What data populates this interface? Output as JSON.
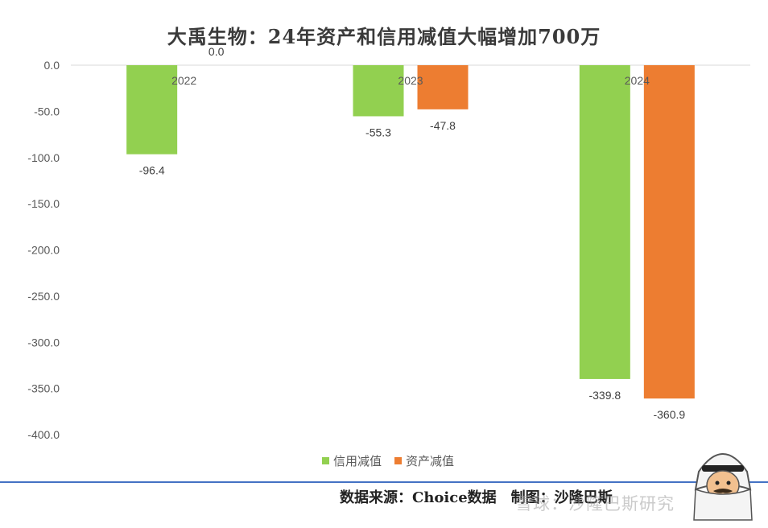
{
  "chart_data": {
    "type": "bar",
    "title": "大禹生物：24年资产和信用减值大幅增加700万",
    "categories": [
      "2022",
      "2023",
      "2024"
    ],
    "series": [
      {
        "name": "信用减值",
        "color": "#92d050",
        "values": [
          -96.4,
          -55.3,
          -339.8
        ],
        "labels": [
          "-96.4",
          "-55.3",
          "-339.8"
        ]
      },
      {
        "name": "资产减值",
        "color": "#ed7d31",
        "values": [
          0.0,
          -47.8,
          -360.9
        ],
        "labels": [
          "0.0",
          "-47.8",
          "-360.9"
        ]
      }
    ],
    "yticks": [
      "0.0",
      "-50.0",
      "-100.0",
      "-150.0",
      "-200.0",
      "-250.0",
      "-300.0",
      "-350.0",
      "-400.0"
    ],
    "ylim": [
      -400,
      0
    ],
    "legend_position": "bottom",
    "grid": false
  },
  "footer": {
    "source": "数据来源：Choice数据",
    "maker": "制图：沙隆巴斯"
  },
  "watermark": "雪球：沙隆巴斯研究"
}
